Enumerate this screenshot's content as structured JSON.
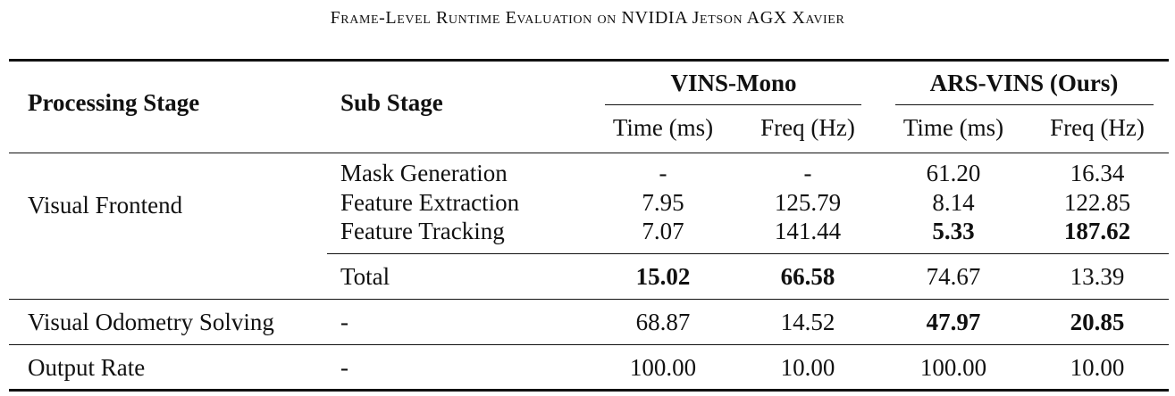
{
  "caption": "Frame-Level Runtime Evaluation on NVIDIA Jetson AGX Xavier",
  "header": {
    "processing_stage": "Processing Stage",
    "sub_stage": "Sub Stage",
    "vins_mono": "VINS-Mono",
    "ars_vins": "ARS-VINS (Ours)",
    "time_ms": "Time (ms)",
    "freq_hz": "Freq (Hz)"
  },
  "rows": [
    {
      "stage": "Visual Frontend",
      "sub": "Mask Generation",
      "vm_time": "-",
      "vm_freq": "-",
      "ars_time": "61.20",
      "ars_freq": "16.34"
    },
    {
      "stage": "",
      "sub": "Feature Extraction",
      "vm_time": "7.95",
      "vm_freq": "125.79",
      "ars_time": "8.14",
      "ars_freq": "122.85"
    },
    {
      "stage": "",
      "sub": "Feature Tracking",
      "vm_time": "7.07",
      "vm_freq": "141.44",
      "ars_time": "5.33",
      "ars_freq": "187.62"
    },
    {
      "stage": "",
      "sub": "Total",
      "vm_time": "15.02",
      "vm_freq": "66.58",
      "ars_time": "74.67",
      "ars_freq": "13.39"
    },
    {
      "stage": "Visual Odometry Solving",
      "sub": "-",
      "vm_time": "68.87",
      "vm_freq": "14.52",
      "ars_time": "47.97",
      "ars_freq": "20.85"
    },
    {
      "stage": "Output Rate",
      "sub": "-",
      "vm_time": "100.00",
      "vm_freq": "10.00",
      "ars_time": "100.00",
      "ars_freq": "10.00"
    }
  ]
}
